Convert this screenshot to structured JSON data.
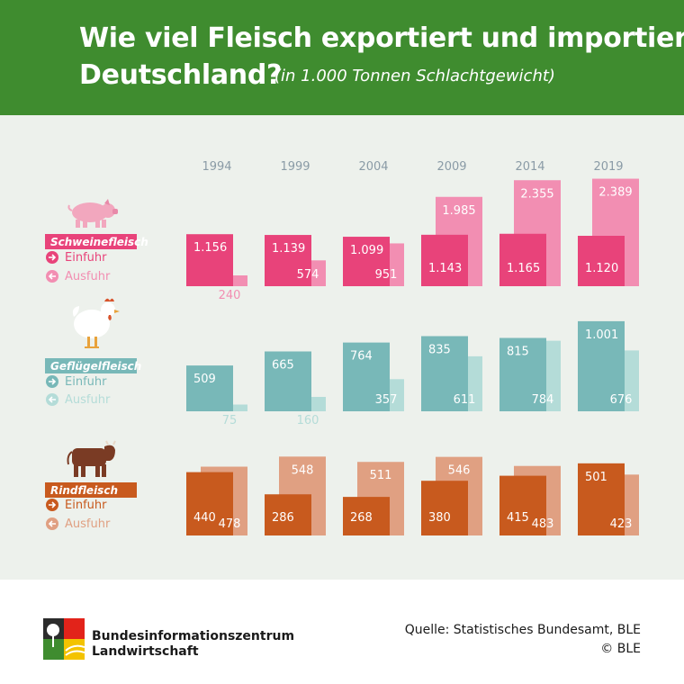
{
  "header": {
    "title_line1": "Wie viel Fleisch exportiert und importiert",
    "title_line2": "Deutschland?",
    "subtitle": "(in 1.000 Tonnen Schlachtgewicht)"
  },
  "colors": {
    "header_bg": "#3f8c2f",
    "panel_bg": "#edf1ec",
    "schwein_einfuhr": "#e8437a",
    "schwein_ausfuhr": "#f28eb2",
    "gefluegel_einfuhr": "#78b8b8",
    "gefluegel_ausfuhr": "#b4dcd8",
    "rind_einfuhr": "#c85a1e",
    "rind_ausfuhr": "#e0a082"
  },
  "legend": {
    "einfuhr": "Einfuhr",
    "ausfuhr": "Ausfuhr"
  },
  "chart_data": {
    "type": "bar",
    "categories": [
      "1994",
      "1999",
      "2004",
      "2009",
      "2014",
      "2019"
    ],
    "groups": [
      {
        "name": "Schweinefleisch",
        "icon": "pig-icon",
        "series": [
          {
            "name": "Einfuhr",
            "values": [
              1156,
              1139,
              1099,
              1143,
              1165,
              1120
            ],
            "labels": [
              "1.156",
              "1.139",
              "1.099",
              "1.143",
              "1.165",
              "1.120"
            ]
          },
          {
            "name": "Ausfuhr",
            "values": [
              240,
              574,
              951,
              1985,
              2355,
              2389
            ],
            "labels": [
              "240",
              "574",
              "951",
              "1.985",
              "2.355",
              "2.389"
            ]
          }
        ]
      },
      {
        "name": "Geflügelfleisch",
        "icon": "chicken-icon",
        "series": [
          {
            "name": "Einfuhr",
            "values": [
              509,
              665,
              764,
              835,
              815,
              1001
            ],
            "labels": [
              "509",
              "665",
              "764",
              "835",
              "815",
              "1.001"
            ]
          },
          {
            "name": "Ausfuhr",
            "values": [
              75,
              160,
              357,
              611,
              784,
              676
            ],
            "labels": [
              "75",
              "160",
              "357",
              "611",
              "784",
              "676"
            ]
          }
        ]
      },
      {
        "name": "Rindfleisch",
        "icon": "cow-icon",
        "series": [
          {
            "name": "Einfuhr",
            "values": [
              440,
              286,
              268,
              380,
              415,
              501
            ],
            "labels": [
              "440",
              "286",
              "268",
              "380",
              "415",
              "501"
            ]
          },
          {
            "name": "Ausfuhr",
            "values": [
              478,
              548,
              511,
              546,
              483,
              423
            ],
            "labels": [
              "478",
              "548",
              "511",
              "546",
              "483",
              "423"
            ]
          }
        ]
      }
    ]
  },
  "footer": {
    "org_line1": "Bundesinformationszentrum",
    "org_line2": "Landwirtschaft",
    "source": "Quelle: Statistisches Bundesamt, BLE",
    "copyright": "© BLE",
    "logo_icon": "ble-logo-icon"
  }
}
